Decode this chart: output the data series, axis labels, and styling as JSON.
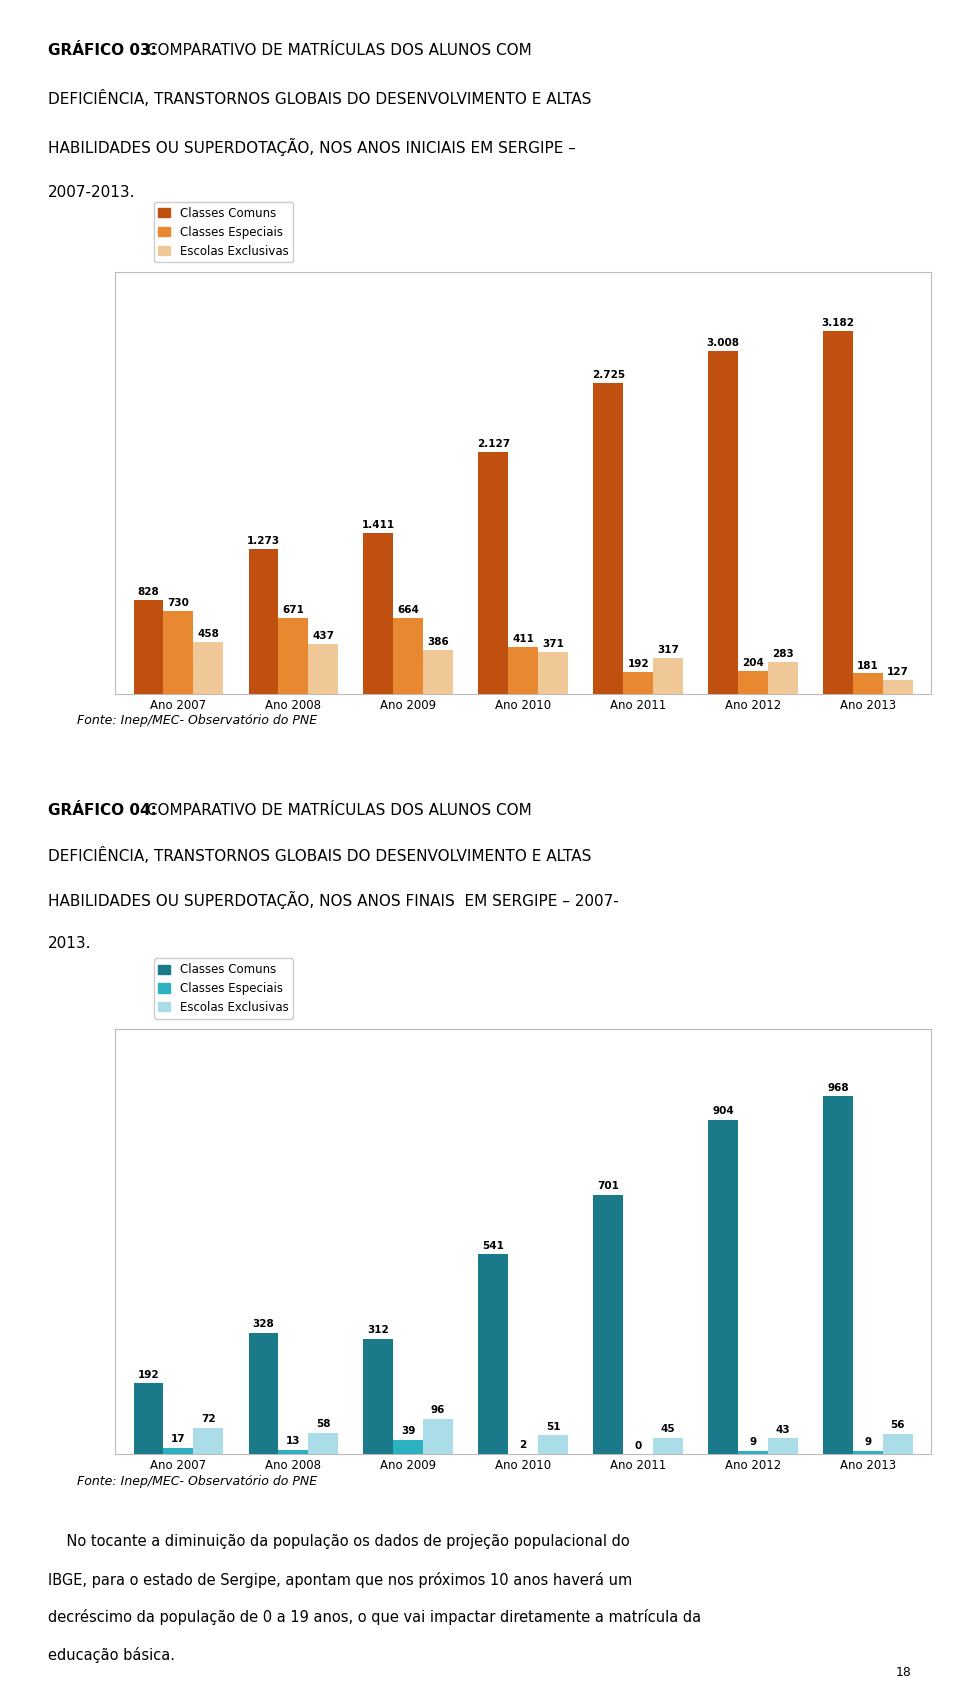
{
  "page_bg": "#ffffff",
  "page_number": "18",
  "title1_line1_bold": "GRÁFICO 03:",
  "title1_line1_rest": " COMPARATIVO DE MATRÍCULAS DOS ALUNOS COM",
  "title1_line2": "DEFICIÊNCIA, TRANSTORNOS GLOBAIS DO DESENVOLVIMENTO E ALTAS",
  "title1_line3": "HABILIDADES OU SUPERDOTAÇÃO, NOS ANOS INICIAIS EM SERGIPE –",
  "title1_line4": "2007-2013.",
  "chart1": {
    "years": [
      "Ano 2007",
      "Ano 2008",
      "Ano 2009",
      "Ano 2010",
      "Ano 2011",
      "Ano 2012",
      "Ano 2013"
    ],
    "classes_comuns": [
      828,
      1273,
      1411,
      2127,
      2725,
      3008,
      3182
    ],
    "classes_especiais": [
      730,
      671,
      664,
      411,
      192,
      204,
      181
    ],
    "escolas_exclusivas": [
      458,
      437,
      386,
      371,
      317,
      283,
      127
    ],
    "labels_comuns": [
      "828",
      "1.273",
      "1.411",
      "2.127",
      "2.725",
      "3.008",
      "3.182"
    ],
    "labels_especiais": [
      "730",
      "671",
      "664",
      "411",
      "192",
      "204",
      "181"
    ],
    "labels_exclusivas": [
      "458",
      "437",
      "386",
      "371",
      "317",
      "283",
      "127"
    ],
    "color_comuns": "#c05010",
    "color_especiais": "#e88830",
    "color_exclusivas": "#f0c898",
    "legend_labels": [
      "Classes Comuns",
      "Classes Especiais",
      "Escolas Exclusivas"
    ],
    "ylim": [
      0,
      3700
    ],
    "bar_width": 0.26
  },
  "fonte1": "Fonte: Inep/MEC- Observatório do PNE",
  "title2_line1_bold": "GRÁFICO 04:",
  "title2_line1_rest": " COMPARATIVO DE MATRÍCULAS DOS ALUNOS COM",
  "title2_line2": "DEFICIÊNCIA, TRANSTORNOS GLOBAIS DO DESENVOLVIMENTO E ALTAS",
  "title2_line3": "HABILIDADES OU SUPERDOTAÇÃO, NOS ANOS FINAIS  EM SERGIPE – 2007-",
  "title2_line4": "2013.",
  "chart2": {
    "years": [
      "Ano 2007",
      "Ano 2008",
      "Ano 2009",
      "Ano 2010",
      "Ano 2011",
      "Ano 2012",
      "Ano 2013"
    ],
    "classes_comuns": [
      192,
      328,
      312,
      541,
      701,
      904,
      968
    ],
    "classes_especiais": [
      17,
      13,
      39,
      2,
      0,
      9,
      9
    ],
    "escolas_exclusivas": [
      72,
      58,
      96,
      51,
      45,
      43,
      56
    ],
    "labels_comuns": [
      "192",
      "328",
      "312",
      "541",
      "701",
      "904",
      "968"
    ],
    "labels_especiais": [
      "17",
      "13",
      "39",
      "2",
      "0",
      "9",
      "9"
    ],
    "labels_exclusivas": [
      "72",
      "58",
      "96",
      "51",
      "45",
      "43",
      "56"
    ],
    "color_comuns": "#1a7a8a",
    "color_especiais": "#2db0c0",
    "color_exclusivas": "#aadde8",
    "legend_labels": [
      "Classes Comuns",
      "Classes Especiais",
      "Escolas Exclusivas"
    ],
    "ylim": [
      0,
      1150
    ],
    "bar_width": 0.26
  },
  "fonte2": "Fonte: Inep/MEC- Observatório do PNE",
  "body_text": "No tocante a diminuição da população os dados de projeção populacional do IBGE, para o estado de Sergipe, apontam que nos próximos 10 anos haverá um decréscimo da população de 0 a 19 anos, o que vai impactar diretamente a matrícula da educação básica.",
  "title_fontsize": 11,
  "tick_fontsize": 8.5,
  "legend_fontsize": 8.5,
  "value_fontsize": 7.5,
  "fonte_fontsize": 9,
  "body_fontsize": 10.5
}
